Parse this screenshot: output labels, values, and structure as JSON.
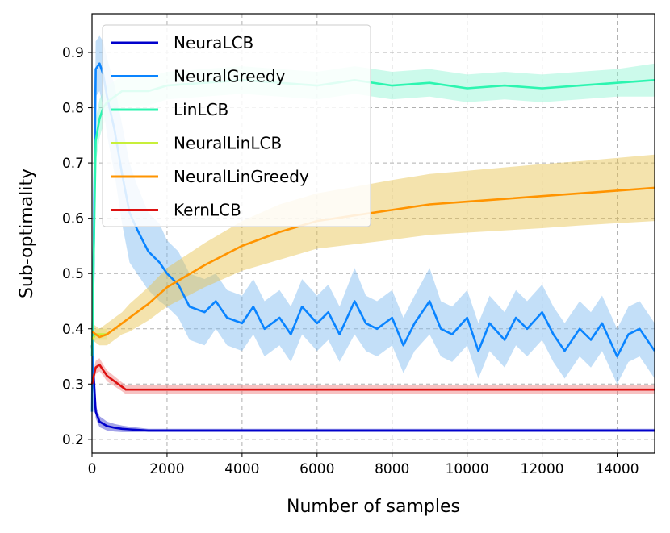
{
  "chart_data": {
    "type": "line",
    "title": "",
    "xlabel": "Number of samples",
    "ylabel": "Sub-optimality",
    "xlim": [
      0,
      15000
    ],
    "ylim": [
      0.175,
      0.97
    ],
    "grid": true,
    "legend_position": "top-left",
    "xticks": [
      0,
      2000,
      4000,
      6000,
      8000,
      10000,
      12000,
      14000
    ],
    "xtick_labels": [
      "0",
      "2000",
      "4000",
      "6000",
      "8000",
      "10000",
      "12000",
      "14000"
    ],
    "yticks": [
      0.2,
      0.3,
      0.4,
      0.5,
      0.6,
      0.7,
      0.8,
      0.9
    ],
    "ytick_labels": [
      "0.2",
      "0.3",
      "0.4",
      "0.5",
      "0.6",
      "0.7",
      "0.8",
      "0.9"
    ],
    "series": [
      {
        "name": "NeuraLCB",
        "color": "#0000cc",
        "band_color": "#3333cc",
        "x": [
          0,
          100,
          200,
          400,
          600,
          800,
          1000,
          1500,
          2000,
          4000,
          6000,
          8000,
          10000,
          12000,
          14000,
          15000
        ],
        "y": [
          0.37,
          0.25,
          0.232,
          0.224,
          0.221,
          0.219,
          0.218,
          0.216,
          0.216,
          0.216,
          0.216,
          0.216,
          0.216,
          0.216,
          0.216,
          0.216
        ],
        "band": [
          0.012,
          0.012,
          0.01,
          0.008,
          0.007,
          0.006,
          0.005,
          0.003,
          0.003,
          0.003,
          0.003,
          0.003,
          0.003,
          0.003,
          0.003,
          0.003
        ]
      },
      {
        "name": "NeuralGreedy",
        "color": "#0a84ff",
        "band_color": "#7ab8f0",
        "x": [
          0,
          100,
          200,
          300,
          400,
          600,
          800,
          1000,
          1200,
          1500,
          1800,
          2000,
          2300,
          2600,
          3000,
          3300,
          3600,
          4000,
          4300,
          4600,
          5000,
          5300,
          5600,
          6000,
          6300,
          6600,
          7000,
          7300,
          7600,
          8000,
          8300,
          8600,
          9000,
          9300,
          9600,
          10000,
          10300,
          10600,
          11000,
          11300,
          11600,
          12000,
          12300,
          12600,
          13000,
          13300,
          13600,
          14000,
          14300,
          14600,
          15000
        ],
        "y": [
          0.25,
          0.87,
          0.88,
          0.86,
          0.82,
          0.76,
          0.68,
          0.61,
          0.58,
          0.54,
          0.52,
          0.5,
          0.48,
          0.44,
          0.43,
          0.45,
          0.42,
          0.41,
          0.44,
          0.4,
          0.42,
          0.39,
          0.44,
          0.41,
          0.43,
          0.39,
          0.45,
          0.41,
          0.4,
          0.42,
          0.37,
          0.41,
          0.45,
          0.4,
          0.39,
          0.42,
          0.36,
          0.41,
          0.38,
          0.42,
          0.4,
          0.43,
          0.39,
          0.36,
          0.4,
          0.38,
          0.41,
          0.35,
          0.39,
          0.4,
          0.36
        ],
        "band": [
          0.03,
          0.05,
          0.05,
          0.06,
          0.07,
          0.08,
          0.09,
          0.09,
          0.08,
          0.07,
          0.07,
          0.06,
          0.06,
          0.06,
          0.06,
          0.05,
          0.05,
          0.05,
          0.05,
          0.05,
          0.05,
          0.05,
          0.05,
          0.05,
          0.05,
          0.05,
          0.06,
          0.05,
          0.05,
          0.05,
          0.05,
          0.05,
          0.06,
          0.05,
          0.05,
          0.05,
          0.05,
          0.05,
          0.05,
          0.05,
          0.05,
          0.05,
          0.05,
          0.05,
          0.05,
          0.05,
          0.05,
          0.05,
          0.05,
          0.05,
          0.05
        ]
      },
      {
        "name": "LinLCB",
        "color": "#2cf5b0",
        "band_color": "#8ff5d2",
        "x": [
          0,
          100,
          200,
          300,
          400,
          600,
          800,
          1000,
          1500,
          2000,
          3000,
          4000,
          5000,
          6000,
          7000,
          8000,
          9000,
          10000,
          11000,
          12000,
          13000,
          14000,
          15000
        ],
        "y": [
          0.35,
          0.74,
          0.78,
          0.8,
          0.81,
          0.82,
          0.83,
          0.83,
          0.83,
          0.84,
          0.845,
          0.85,
          0.845,
          0.84,
          0.85,
          0.84,
          0.845,
          0.835,
          0.84,
          0.835,
          0.84,
          0.845,
          0.85
        ],
        "band": [
          0.02,
          0.04,
          0.035,
          0.03,
          0.03,
          0.028,
          0.028,
          0.026,
          0.026,
          0.025,
          0.025,
          0.025,
          0.025,
          0.025,
          0.025,
          0.025,
          0.025,
          0.025,
          0.025,
          0.025,
          0.025,
          0.025,
          0.03
        ]
      },
      {
        "name": "NeuralLinLCB",
        "color": "#c8ef3a",
        "band_color": "#e0f58a",
        "x": [
          0,
          100,
          200,
          400
        ],
        "y": [
          0.38,
          0.39,
          0.39,
          0.39
        ],
        "band": [
          0.01,
          0.01,
          0.01,
          0.01
        ]
      },
      {
        "name": "NeuralLinGreedy",
        "color": "#ff9400",
        "band_color": "#e6c24a",
        "x": [
          0,
          100,
          200,
          400,
          600,
          800,
          1000,
          1500,
          2000,
          3000,
          4000,
          5000,
          6000,
          7000,
          8000,
          9000,
          10000,
          11000,
          12000,
          13000,
          14000,
          15000
        ],
        "y": [
          0.395,
          0.39,
          0.385,
          0.39,
          0.4,
          0.41,
          0.42,
          0.445,
          0.475,
          0.515,
          0.55,
          0.575,
          0.595,
          0.605,
          0.615,
          0.625,
          0.63,
          0.635,
          0.64,
          0.645,
          0.65,
          0.655
        ],
        "band": [
          0.015,
          0.015,
          0.015,
          0.02,
          0.02,
          0.02,
          0.025,
          0.03,
          0.035,
          0.04,
          0.045,
          0.05,
          0.05,
          0.052,
          0.054,
          0.055,
          0.056,
          0.057,
          0.058,
          0.058,
          0.059,
          0.06
        ]
      },
      {
        "name": "KernLCB",
        "color": "#dd1111",
        "band_color": "#ee7777",
        "x": [
          0,
          100,
          200,
          300,
          400,
          600,
          800,
          900,
          1000,
          2000,
          4000,
          6000,
          8000,
          10000,
          12000,
          14000,
          15000
        ],
        "y": [
          0.3,
          0.33,
          0.335,
          0.325,
          0.315,
          0.305,
          0.295,
          0.29,
          0.29,
          0.29,
          0.29,
          0.29,
          0.29,
          0.29,
          0.29,
          0.29,
          0.29
        ],
        "band": [
          0.01,
          0.012,
          0.012,
          0.01,
          0.01,
          0.009,
          0.008,
          0.008,
          0.008,
          0.008,
          0.008,
          0.008,
          0.008,
          0.008,
          0.008,
          0.008,
          0.008
        ]
      }
    ]
  }
}
